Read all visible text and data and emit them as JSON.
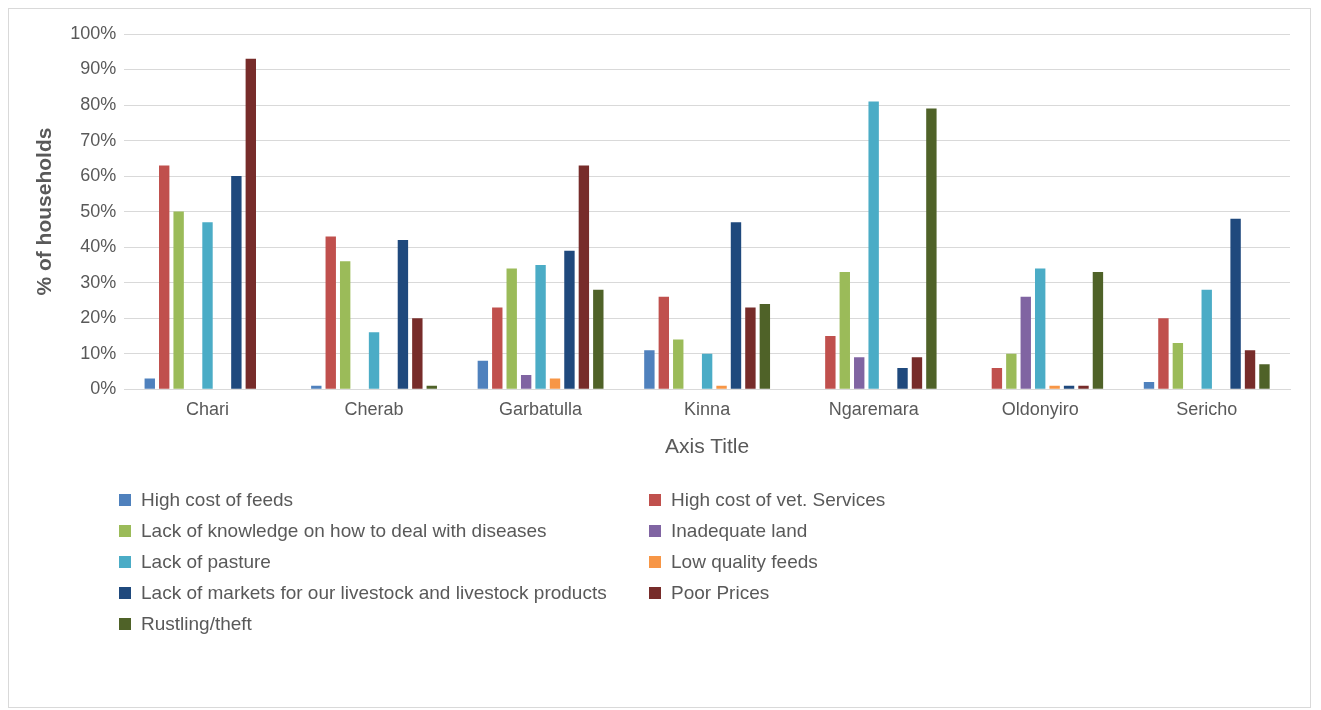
{
  "chart_data": {
    "type": "bar",
    "xlabel": "Axis Title",
    "ylabel": "% of households",
    "categories": [
      "Chari",
      "Cherab",
      "Garbatulla",
      "Kinna",
      "Ngaremara",
      "Oldonyiro",
      "Sericho"
    ],
    "series": [
      {
        "name": "High cost of feeds",
        "color": "#4f81bd",
        "values": [
          3,
          1,
          8,
          11,
          0,
          0,
          2
        ]
      },
      {
        "name": "High cost of vet. Services",
        "color": "#c0504d",
        "values": [
          63,
          43,
          23,
          26,
          15,
          6,
          20
        ]
      },
      {
        "name": "Lack of knowledge on how to deal with diseases",
        "color": "#9bbb59",
        "values": [
          50,
          36,
          34,
          14,
          33,
          10,
          13
        ]
      },
      {
        "name": "Inadequate land",
        "color": "#8064a2",
        "values": [
          0,
          0,
          4,
          0,
          9,
          26,
          0
        ]
      },
      {
        "name": "Lack of pasture",
        "color": "#4bacc6",
        "values": [
          47,
          16,
          35,
          10,
          81,
          34,
          28
        ]
      },
      {
        "name": "Low quality feeds",
        "color": "#f79646",
        "values": [
          0,
          0,
          3,
          1,
          0,
          1,
          0
        ]
      },
      {
        "name": "Lack of markets for our livestock and livestock products",
        "color": "#1f497d",
        "values": [
          60,
          42,
          39,
          47,
          6,
          1,
          48
        ]
      },
      {
        "name": "Poor Prices",
        "color": "#772c2a",
        "values": [
          93,
          20,
          63,
          23,
          9,
          1,
          11
        ]
      },
      {
        "name": "Rustling/theft",
        "color": "#4f6228",
        "values": [
          0,
          1,
          28,
          24,
          79,
          33,
          7
        ]
      }
    ],
    "ylim": [
      0,
      100
    ],
    "yticks": [
      {
        "value": 0,
        "label": "0%"
      },
      {
        "value": 10,
        "label": "10%"
      },
      {
        "value": 20,
        "label": "20%"
      },
      {
        "value": 30,
        "label": "30%"
      },
      {
        "value": 40,
        "label": "40%"
      },
      {
        "value": 50,
        "label": "50%"
      },
      {
        "value": 60,
        "label": "60%"
      },
      {
        "value": 70,
        "label": "70%"
      },
      {
        "value": 80,
        "label": "80%"
      },
      {
        "value": 90,
        "label": "90%"
      },
      {
        "value": 100,
        "label": "100%"
      }
    ],
    "grid": "y",
    "legend": "bottom"
  }
}
